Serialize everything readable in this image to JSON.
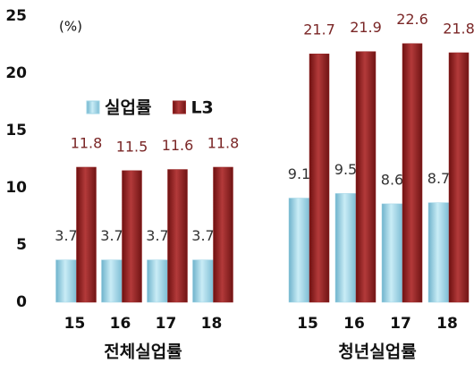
{
  "chart_data": {
    "type": "bar",
    "y_label": "(%)",
    "group_labels": [
      "전체실업률",
      "청년실업률"
    ],
    "categories": [
      "15",
      "16",
      "17",
      "18",
      "15",
      "16",
      "17",
      "18"
    ],
    "series": [
      {
        "name": "실업률",
        "color": "#9fd4e6",
        "values": [
          3.7,
          3.7,
          3.7,
          3.7,
          9.1,
          9.5,
          8.6,
          8.7
        ]
      },
      {
        "name": "L3",
        "color": "#962626",
        "values": [
          11.8,
          11.5,
          11.6,
          11.8,
          21.7,
          21.9,
          22.6,
          21.8
        ]
      }
    ],
    "ylim": [
      0,
      25
    ],
    "yticks": [
      0,
      5,
      10,
      15,
      20,
      25
    ],
    "grid": false,
    "legend": "left"
  }
}
